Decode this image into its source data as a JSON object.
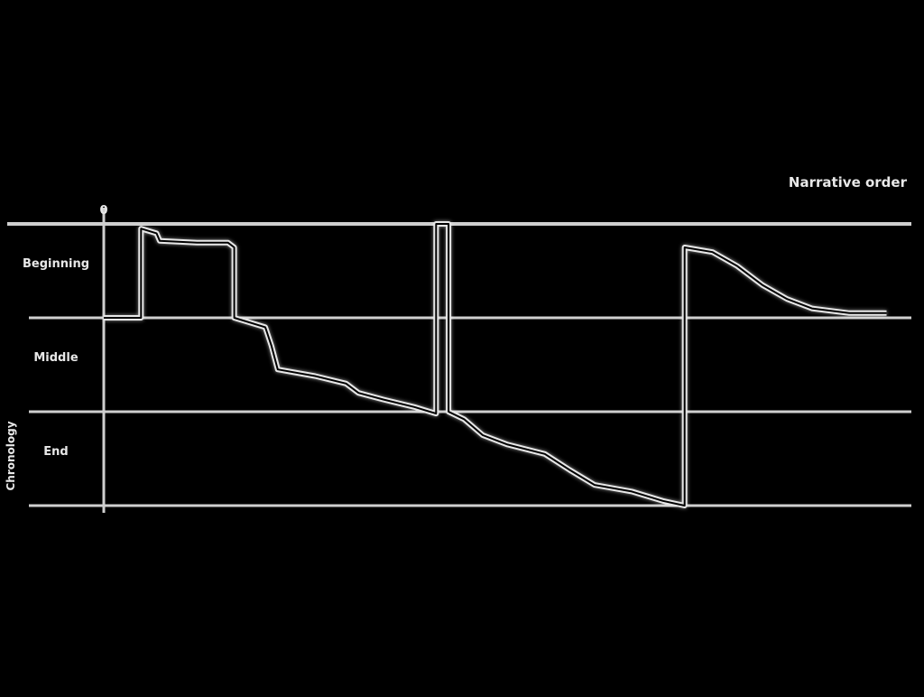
{
  "chart_data": {
    "type": "line",
    "title": "",
    "top_axis_label": "Narrative order",
    "left_axis_label": "Chronology",
    "x_ticks": [
      "0",
      "",
      "",
      "",
      "",
      "",
      "",
      "",
      "",
      "",
      "",
      "",
      "",
      ""
    ],
    "xlim": [
      0,
      13
    ],
    "y_bands": [
      "Beginning",
      "Middle",
      "End"
    ],
    "y_band_markers": [
      "",
      "",
      ""
    ],
    "ylim": [
      0,
      3
    ],
    "series": [
      {
        "points": [
          [
            0,
            2
          ],
          [
            0.6,
            2
          ],
          [
            0.6,
            2.95
          ],
          [
            0.85,
            2.9
          ],
          [
            0.9,
            2.82
          ],
          [
            1.5,
            2.8
          ],
          [
            2.0,
            2.8
          ],
          [
            2.1,
            2.75
          ],
          [
            2.1,
            2.0
          ],
          [
            2.6,
            1.9
          ],
          [
            2.7,
            1.7
          ],
          [
            2.8,
            1.45
          ],
          [
            3.4,
            1.38
          ],
          [
            3.9,
            1.3
          ],
          [
            4.1,
            1.2
          ],
          [
            4.5,
            1.13
          ],
          [
            5.0,
            1.05
          ],
          [
            5.35,
            0.98
          ],
          [
            5.35,
            3
          ],
          [
            5.55,
            3
          ],
          [
            5.55,
            1.0
          ],
          [
            5.8,
            0.92
          ],
          [
            6.1,
            0.75
          ],
          [
            6.5,
            0.65
          ],
          [
            7.1,
            0.55
          ],
          [
            7.5,
            0.38
          ],
          [
            7.9,
            0.22
          ],
          [
            8.5,
            0.15
          ],
          [
            9.0,
            0.05
          ],
          [
            9.35,
            0
          ],
          [
            9.35,
            2.75
          ],
          [
            9.8,
            2.7
          ],
          [
            10.2,
            2.55
          ],
          [
            10.6,
            2.35
          ],
          [
            11.0,
            2.2
          ],
          [
            11.4,
            2.1
          ],
          [
            12.0,
            2.05
          ],
          [
            12.6,
            2.05
          ]
        ]
      }
    ],
    "grid": true,
    "colors": {
      "background": "#000000",
      "line": "#e8e8e8",
      "grid": "#cfcfcf"
    }
  }
}
